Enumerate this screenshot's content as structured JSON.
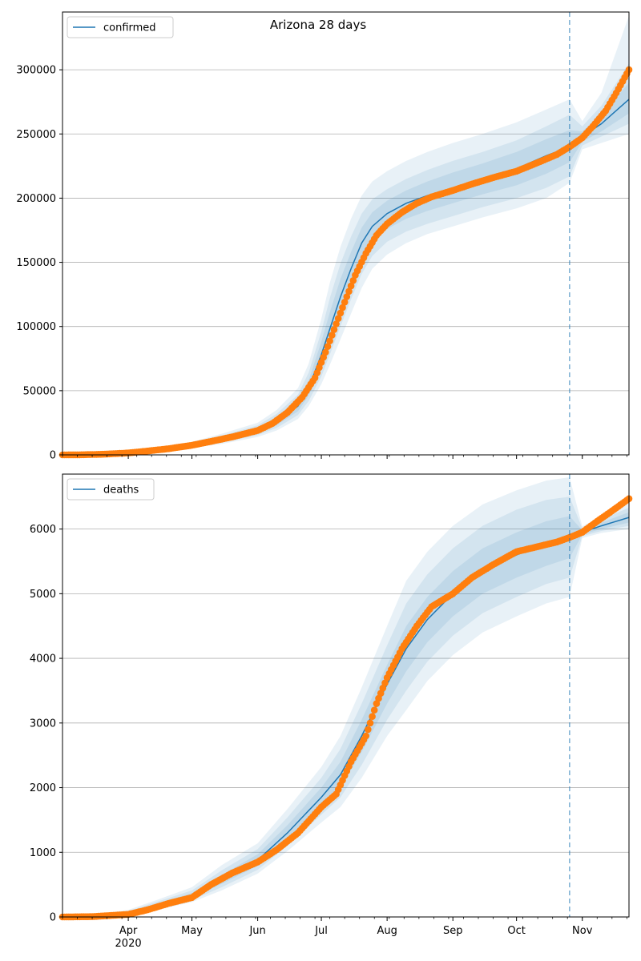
{
  "figure": {
    "title": "Arizona 28 days"
  },
  "colors": {
    "model": "#1f77b4",
    "observed": "#ff7f0e",
    "band": "#1f77b4",
    "grid": "#b0b0b0",
    "cutoff": "#1f77b4"
  },
  "chart_data": [
    {
      "type": "line",
      "legend": "confirmed",
      "legend_placement": "top-left",
      "grid": "y",
      "x_range": [
        "2020-03-01",
        "2020-11-23"
      ],
      "forecast_start": "2020-10-26",
      "ylim": [
        0,
        345000
      ],
      "y_ticks": [
        0,
        50000,
        100000,
        150000,
        200000,
        250000,
        300000
      ],
      "x_ticks": [
        {
          "date": "2020-04-01",
          "label": "Apr",
          "sub": "2020"
        },
        {
          "date": "2020-05-01",
          "label": "May",
          "sub": ""
        },
        {
          "date": "2020-06-01",
          "label": "Jun",
          "sub": ""
        },
        {
          "date": "2020-07-01",
          "label": "Jul",
          "sub": ""
        },
        {
          "date": "2020-08-01",
          "label": "Aug",
          "sub": ""
        },
        {
          "date": "2020-09-01",
          "label": "Sep",
          "sub": ""
        },
        {
          "date": "2020-10-01",
          "label": "Oct",
          "sub": ""
        },
        {
          "date": "2020-11-01",
          "label": "Nov",
          "sub": ""
        }
      ],
      "model": {
        "x": [
          "2020-03-01",
          "2020-03-15",
          "2020-04-01",
          "2020-04-15",
          "2020-05-01",
          "2020-05-15",
          "2020-06-01",
          "2020-06-10",
          "2020-06-20",
          "2020-06-25",
          "2020-07-01",
          "2020-07-05",
          "2020-07-10",
          "2020-07-15",
          "2020-07-20",
          "2020-07-25",
          "2020-08-01",
          "2020-08-10",
          "2020-08-20",
          "2020-09-01",
          "2020-09-15",
          "2020-10-01",
          "2020-10-15",
          "2020-10-26",
          "2020-11-01",
          "2020-11-10",
          "2020-11-23"
        ],
        "y": [
          0,
          300,
          1500,
          4000,
          7500,
          12000,
          19000,
          26000,
          38000,
          52000,
          78000,
          98000,
          123000,
          145000,
          165000,
          178000,
          188000,
          196000,
          202000,
          208000,
          215000,
          223000,
          233000,
          240000,
          248000,
          258000,
          277000
        ]
      },
      "bands": {
        "inner_lo": [
          0,
          200,
          1200,
          3500,
          6500,
          10500,
          17000,
          23000,
          34000,
          46000,
          68000,
          86000,
          110000,
          132000,
          152000,
          166000,
          176000,
          184000,
          190000,
          196000,
          203000,
          210000,
          219000,
          228000,
          244000,
          252000,
          266000
        ],
        "inner_hi": [
          0,
          400,
          1800,
          4600,
          8500,
          13500,
          21000,
          29000,
          43000,
          58000,
          88000,
          111000,
          137000,
          158000,
          177000,
          189000,
          198000,
          206000,
          213000,
          220000,
          227000,
          236000,
          246000,
          253000,
          252000,
          265000,
          290000
        ],
        "mid_lo": [
          0,
          150,
          1000,
          3000,
          6000,
          9500,
          15500,
          21000,
          31000,
          42000,
          61000,
          78000,
          100000,
          121000,
          141000,
          155000,
          166000,
          174000,
          180000,
          186000,
          193000,
          200000,
          208000,
          217000,
          241000,
          248000,
          258000
        ],
        "mid_hi": [
          0,
          500,
          2100,
          5200,
          9300,
          15000,
          23000,
          32000,
          47000,
          64000,
          96000,
          122000,
          149000,
          170000,
          188000,
          199000,
          207000,
          215000,
          222000,
          229000,
          236000,
          245000,
          256000,
          265000,
          256000,
          272000,
          305000
        ],
        "outer_lo": [
          0,
          100,
          800,
          2500,
          5400,
          8500,
          14000,
          19000,
          28000,
          38000,
          55000,
          70000,
          90000,
          110000,
          130000,
          145000,
          156000,
          165000,
          172000,
          178000,
          185000,
          192000,
          200000,
          212000,
          238000,
          243000,
          250000
        ],
        "outer_hi": [
          0,
          600,
          2400,
          5800,
          10200,
          16500,
          25000,
          35000,
          52000,
          71000,
          106000,
          134000,
          162000,
          184000,
          202000,
          213000,
          221000,
          229000,
          236000,
          243000,
          250000,
          259000,
          269000,
          277000,
          260000,
          282000,
          342000
        ]
      },
      "observed": {
        "x": [
          "2020-03-01",
          "2020-03-10",
          "2020-03-20",
          "2020-04-01",
          "2020-04-10",
          "2020-04-20",
          "2020-05-01",
          "2020-05-10",
          "2020-05-20",
          "2020-06-01",
          "2020-06-08",
          "2020-06-15",
          "2020-06-22",
          "2020-06-28",
          "2020-07-03",
          "2020-07-08",
          "2020-07-12",
          "2020-07-17",
          "2020-07-22",
          "2020-07-27",
          "2020-08-01",
          "2020-08-08",
          "2020-08-15",
          "2020-08-22",
          "2020-09-01",
          "2020-09-10",
          "2020-09-20",
          "2020-10-01",
          "2020-10-10",
          "2020-10-20",
          "2020-10-26",
          "2020-11-01",
          "2020-11-06",
          "2020-11-12",
          "2020-11-17",
          "2020-11-23"
        ],
        "y": [
          0,
          100,
          500,
          1500,
          3000,
          4800,
          7500,
          10500,
          14000,
          19000,
          24500,
          33000,
          45000,
          60000,
          80000,
          102000,
          119000,
          140000,
          157000,
          171000,
          180000,
          189000,
          196000,
          201000,
          206000,
          211000,
          216000,
          221000,
          227000,
          234000,
          240000,
          247000,
          256000,
          268000,
          282000,
          300000
        ]
      }
    },
    {
      "type": "line",
      "legend": "deaths",
      "legend_placement": "top-left",
      "grid": "y",
      "x_range": [
        "2020-03-01",
        "2020-11-23"
      ],
      "forecast_start": "2020-10-26",
      "ylim": [
        0,
        6850
      ],
      "y_ticks": [
        0,
        1000,
        2000,
        3000,
        4000,
        5000,
        6000
      ],
      "x_ticks": [
        {
          "date": "2020-04-01",
          "label": "Apr",
          "sub": "2020"
        },
        {
          "date": "2020-05-01",
          "label": "May",
          "sub": ""
        },
        {
          "date": "2020-06-01",
          "label": "Jun",
          "sub": ""
        },
        {
          "date": "2020-07-01",
          "label": "Jul",
          "sub": ""
        },
        {
          "date": "2020-08-01",
          "label": "Aug",
          "sub": ""
        },
        {
          "date": "2020-09-01",
          "label": "Sep",
          "sub": ""
        },
        {
          "date": "2020-10-01",
          "label": "Oct",
          "sub": ""
        },
        {
          "date": "2020-11-01",
          "label": "Nov",
          "sub": ""
        }
      ],
      "model": {
        "x": [
          "2020-03-01",
          "2020-03-15",
          "2020-04-01",
          "2020-04-15",
          "2020-05-01",
          "2020-05-15",
          "2020-06-01",
          "2020-06-15",
          "2020-07-01",
          "2020-07-10",
          "2020-07-20",
          "2020-08-01",
          "2020-08-10",
          "2020-08-20",
          "2020-09-01",
          "2020-09-15",
          "2020-10-01",
          "2020-10-15",
          "2020-10-26",
          "2020-11-01",
          "2020-11-10",
          "2020-11-23"
        ],
        "y": [
          0,
          10,
          60,
          180,
          330,
          580,
          880,
          1300,
          1850,
          2200,
          2800,
          3600,
          4150,
          4600,
          5000,
          5350,
          5600,
          5780,
          5880,
          5950,
          6050,
          6180
        ]
      },
      "bands": {
        "inner_lo": [
          0,
          5,
          45,
          150,
          290,
          510,
          790,
          1180,
          1700,
          2000,
          2550,
          3300,
          3800,
          4250,
          4650,
          5000,
          5250,
          5430,
          5550,
          5920,
          6000,
          6100
        ],
        "inner_hi": [
          0,
          15,
          75,
          210,
          370,
          650,
          970,
          1420,
          2000,
          2400,
          3050,
          3900,
          4500,
          4950,
          5350,
          5700,
          5950,
          6120,
          6200,
          5980,
          6100,
          6260
        ],
        "mid_lo": [
          0,
          3,
          35,
          130,
          260,
          460,
          730,
          1100,
          1580,
          1850,
          2350,
          3050,
          3500,
          3950,
          4350,
          4700,
          4950,
          5150,
          5250,
          5890,
          5970,
          6050
        ],
        "mid_hi": [
          0,
          20,
          90,
          240,
          410,
          720,
          1050,
          1540,
          2150,
          2600,
          3300,
          4200,
          4850,
          5300,
          5700,
          6050,
          6300,
          6450,
          6500,
          6010,
          6150,
          6330
        ],
        "outer_lo": [
          0,
          0,
          25,
          110,
          230,
          410,
          670,
          1020,
          1460,
          1700,
          2150,
          2800,
          3200,
          3650,
          4050,
          4400,
          4650,
          4850,
          4950,
          5860,
          5940,
          6000
        ],
        "outer_hi": [
          0,
          25,
          110,
          270,
          460,
          800,
          1140,
          1670,
          2320,
          2800,
          3550,
          4500,
          5200,
          5650,
          6050,
          6380,
          6600,
          6750,
          6800,
          6040,
          6200,
          6400
        ]
      },
      "observed": {
        "x": [
          "2020-03-01",
          "2020-03-15",
          "2020-04-01",
          "2020-04-10",
          "2020-04-20",
          "2020-05-01",
          "2020-05-10",
          "2020-05-20",
          "2020-06-01",
          "2020-06-10",
          "2020-06-20",
          "2020-07-01",
          "2020-07-08",
          "2020-07-15",
          "2020-07-22",
          "2020-07-27",
          "2020-08-01",
          "2020-08-08",
          "2020-08-15",
          "2020-08-22",
          "2020-09-01",
          "2020-09-10",
          "2020-09-20",
          "2020-10-01",
          "2020-10-10",
          "2020-10-20",
          "2020-10-26",
          "2020-11-01",
          "2020-11-08",
          "2020-11-15",
          "2020-11-23"
        ],
        "y": [
          0,
          5,
          40,
          110,
          210,
          300,
          500,
          680,
          850,
          1040,
          1300,
          1700,
          1900,
          2400,
          2800,
          3300,
          3700,
          4150,
          4500,
          4800,
          5000,
          5250,
          5450,
          5650,
          5720,
          5800,
          5870,
          5950,
          6120,
          6280,
          6470
        ]
      }
    }
  ]
}
